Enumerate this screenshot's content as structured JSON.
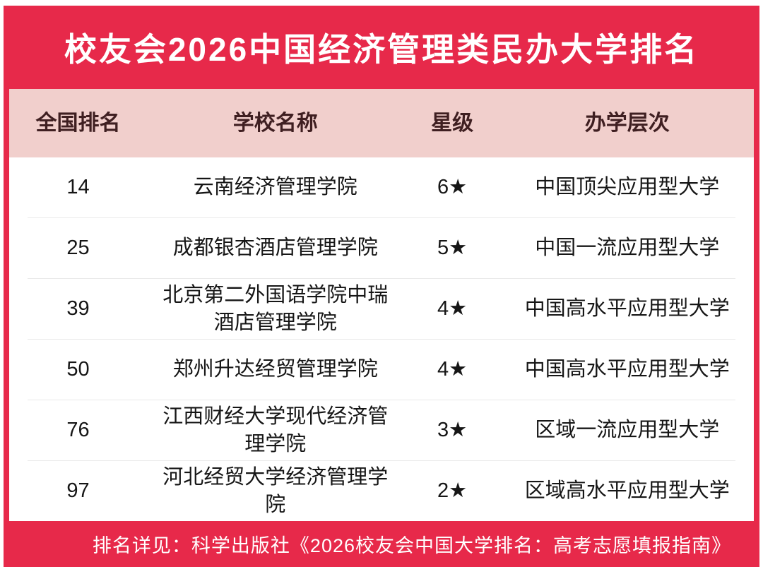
{
  "colors": {
    "accent_red": "#e7294a",
    "header_pink": "#f1cfcc",
    "header_text": "#3f1f21",
    "body_text": "#161616",
    "separator": "#e9e9e9",
    "banner_text": "#ffffff",
    "footer_text": "#ffffff"
  },
  "banner": {
    "title": "校友会2026中国经济管理类民办大学排名"
  },
  "table": {
    "columns": {
      "rank": "全国排名",
      "school": "学校名称",
      "stars": "星级",
      "level": "办学层次"
    },
    "rows": [
      {
        "rank": "14",
        "school": "云南经济管理学院",
        "stars": "6★",
        "level": "中国顶尖应用型大学"
      },
      {
        "rank": "25",
        "school": "成都银杏酒店管理学院",
        "stars": "5★",
        "level": "中国一流应用型大学"
      },
      {
        "rank": "39",
        "school": "北京第二外国语学院中瑞酒店管理学院",
        "stars": "4★",
        "level": "中国高水平应用型大学"
      },
      {
        "rank": "50",
        "school": "郑州升达经贸管理学院",
        "stars": "4★",
        "level": "中国高水平应用型大学"
      },
      {
        "rank": "76",
        "school": "江西财经大学现代经济管理学院",
        "stars": "3★",
        "level": "区域一流应用型大学"
      },
      {
        "rank": "97",
        "school": "河北经贸大学经济管理学院",
        "stars": "2★",
        "level": "区域高水平应用型大学"
      }
    ]
  },
  "footer": {
    "note": "排名详见：科学出版社《2026校友会中国大学排名：高考志愿填报指南》"
  },
  "chart_data": {
    "type": "table",
    "title": "校友会2026中国经济管理类民办大学排名",
    "columns": [
      "全国排名",
      "学校名称",
      "星级",
      "办学层次"
    ],
    "rows": [
      [
        "14",
        "云南经济管理学院",
        "6★",
        "中国顶尖应用型大学"
      ],
      [
        "25",
        "成都银杏酒店管理学院",
        "5★",
        "中国一流应用型大学"
      ],
      [
        "39",
        "北京第二外国语学院中瑞酒店管理学院",
        "4★",
        "中国高水平应用型大学"
      ],
      [
        "50",
        "郑州升达经贸管理学院",
        "4★",
        "中国高水平应用型大学"
      ],
      [
        "76",
        "江西财经大学现代经济管理学院",
        "3★",
        "区域一流应用型大学"
      ],
      [
        "97",
        "河北经贸大学经济管理学院",
        "2★",
        "区域高水平应用型大学"
      ]
    ]
  }
}
